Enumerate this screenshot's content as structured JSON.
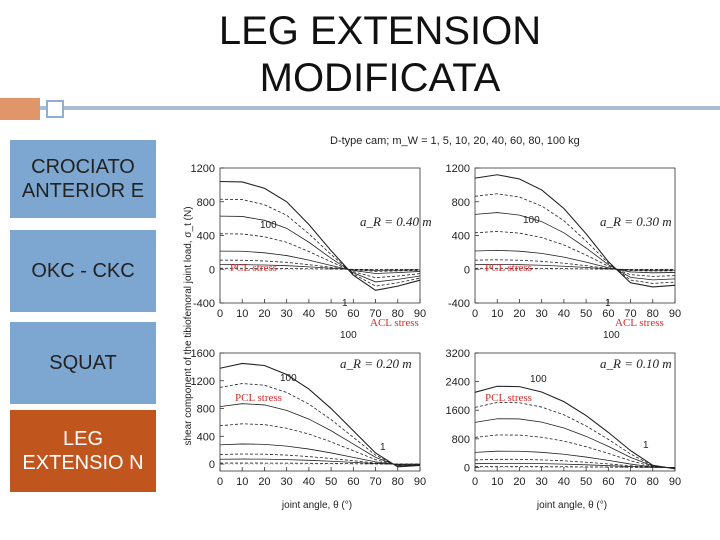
{
  "slide": {
    "title": "LEG EXTENSION MODIFICATA",
    "accent_colors": {
      "orange": "#c0561d",
      "blue": "#7da7d1",
      "line": "#a9bfd8"
    }
  },
  "sidebar": {
    "items": [
      {
        "label": "CROCIATO ANTERIOR E",
        "style": "blue"
      },
      {
        "label": "OKC - CKC",
        "style": "blue"
      },
      {
        "label": "SQUAT",
        "style": "blue"
      },
      {
        "label": "LEG EXTENSIO N",
        "style": "orange"
      }
    ]
  },
  "figure": {
    "header": "D-type cam;  m_W = 1, 5, 10, 20, 40, 60, 80, 100 kg",
    "y_label": "shear component of the tibiofemoral joint load, σ_t (N)",
    "x_label": "joint angle, θ (°)",
    "pcl_label": "PCL stress",
    "acl_label": "ACL stress",
    "max_label": "100",
    "min_label": "1"
  },
  "chart_data": [
    {
      "type": "line",
      "panel": "top-left",
      "title": "a_R = 0.40 m",
      "xlabel": "joint angle, θ (°)",
      "ylabel": "shear component of the tibiofemoral joint load, σ_t (N)",
      "x": [
        0,
        10,
        20,
        30,
        40,
        50,
        60,
        70,
        80,
        90
      ],
      "xlim": [
        0,
        90
      ],
      "ylim": [
        -400,
        1200
      ],
      "yticks": [
        -400,
        0,
        400,
        800,
        1200
      ],
      "xticks": [
        0,
        10,
        20,
        30,
        40,
        50,
        60,
        70,
        80,
        90
      ],
      "series": [
        {
          "name": "100 kg",
          "values": [
            1040,
            1035,
            960,
            800,
            530,
            220,
            -70,
            -250,
            -200,
            -130
          ]
        },
        {
          "name": "80 kg",
          "values": [
            830,
            826,
            765,
            640,
            420,
            175,
            -55,
            -200,
            -160,
            -105
          ]
        },
        {
          "name": "60 kg",
          "values": [
            630,
            626,
            580,
            485,
            320,
            130,
            -42,
            -150,
            -120,
            -80
          ]
        },
        {
          "name": "40 kg",
          "values": [
            420,
            418,
            385,
            320,
            210,
            88,
            -28,
            -100,
            -80,
            -52
          ]
        },
        {
          "name": "20 kg",
          "values": [
            215,
            213,
            195,
            162,
            108,
            45,
            -15,
            -50,
            -40,
            -26
          ]
        },
        {
          "name": "10 kg",
          "values": [
            108,
            107,
            98,
            82,
            54,
            23,
            -8,
            -25,
            -20,
            -13
          ]
        },
        {
          "name": "5 kg",
          "values": [
            55,
            54,
            50,
            42,
            28,
            12,
            -4,
            -13,
            -10,
            -7
          ]
        },
        {
          "name": "1 kg",
          "values": [
            11,
            11,
            10,
            8,
            6,
            2,
            -1,
            -3,
            -2,
            -1
          ]
        }
      ]
    },
    {
      "type": "line",
      "panel": "top-right",
      "title": "a_R = 0.30 m",
      "xlabel": "joint angle, θ (°)",
      "ylabel": "shear component of the tibiofemoral joint load, σ_t (N)",
      "x": [
        0,
        10,
        20,
        30,
        40,
        50,
        60,
        70,
        80,
        90
      ],
      "xlim": [
        0,
        90
      ],
      "ylim": [
        -400,
        1200
      ],
      "yticks": [
        -400,
        0,
        400,
        800,
        1200
      ],
      "xticks": [
        0,
        10,
        20,
        30,
        40,
        50,
        60,
        70,
        80,
        90
      ],
      "series": [
        {
          "name": "100 kg",
          "values": [
            1080,
            1120,
            1070,
            940,
            720,
            420,
            90,
            -160,
            -210,
            -190
          ]
        },
        {
          "name": "80 kg",
          "values": [
            865,
            895,
            855,
            750,
            575,
            335,
            72,
            -128,
            -168,
            -152
          ]
        },
        {
          "name": "60 kg",
          "values": [
            650,
            672,
            642,
            565,
            432,
            252,
            54,
            -96,
            -126,
            -114
          ]
        },
        {
          "name": "40 kg",
          "values": [
            432,
            448,
            428,
            376,
            288,
            168,
            36,
            -64,
            -84,
            -76
          ]
        },
        {
          "name": "20 kg",
          "values": [
            216,
            224,
            214,
            188,
            144,
            84,
            18,
            -32,
            -42,
            -38
          ]
        },
        {
          "name": "10 kg",
          "values": [
            108,
            112,
            107,
            94,
            72,
            42,
            9,
            -16,
            -21,
            -19
          ]
        },
        {
          "name": "5 kg",
          "values": [
            54,
            56,
            54,
            47,
            36,
            21,
            5,
            -8,
            -11,
            -10
          ]
        },
        {
          "name": "1 kg",
          "values": [
            11,
            11,
            11,
            9,
            7,
            4,
            1,
            -2,
            -2,
            -2
          ]
        }
      ]
    },
    {
      "type": "line",
      "panel": "bottom-left",
      "title": "a_R = 0.20 m",
      "xlabel": "joint angle, θ (°)",
      "ylabel": "shear component of the tibiofemoral joint load, σ_t (N)",
      "x": [
        0,
        10,
        20,
        30,
        40,
        50,
        60,
        70,
        80,
        90
      ],
      "xlim": [
        0,
        90
      ],
      "ylim": [
        -100,
        1600
      ],
      "yticks": [
        0,
        400,
        800,
        1200,
        1600
      ],
      "xticks": [
        0,
        10,
        20,
        30,
        40,
        50,
        60,
        70,
        80,
        90
      ],
      "series": [
        {
          "name": "100 kg",
          "values": [
            1380,
            1450,
            1420,
            1290,
            1080,
            800,
            480,
            160,
            -40,
            -20
          ]
        },
        {
          "name": "80 kg",
          "values": [
            1105,
            1160,
            1136,
            1032,
            864,
            640,
            384,
            128,
            -32,
            -16
          ]
        },
        {
          "name": "60 kg",
          "values": [
            828,
            870,
            852,
            774,
            648,
            480,
            288,
            96,
            -24,
            -12
          ]
        },
        {
          "name": "40 kg",
          "values": [
            552,
            580,
            568,
            516,
            432,
            320,
            192,
            64,
            -16,
            -8
          ]
        },
        {
          "name": "20 kg",
          "values": [
            276,
            290,
            284,
            258,
            216,
            160,
            96,
            32,
            -8,
            -4
          ]
        },
        {
          "name": "10 kg",
          "values": [
            138,
            145,
            142,
            129,
            108,
            80,
            48,
            16,
            -4,
            -2
          ]
        },
        {
          "name": "5 kg",
          "values": [
            69,
            72,
            71,
            64,
            54,
            40,
            24,
            8,
            -2,
            -1
          ]
        },
        {
          "name": "1 kg",
          "values": [
            14,
            14,
            14,
            13,
            11,
            8,
            5,
            2,
            0,
            0
          ]
        }
      ]
    },
    {
      "type": "line",
      "panel": "bottom-right",
      "title": "a_R = 0.10 m",
      "xlabel": "joint angle, θ (°)",
      "ylabel": "shear component of the tibiofemoral joint load, σ_t (N)",
      "x": [
        0,
        10,
        20,
        30,
        40,
        50,
        60,
        70,
        80,
        90
      ],
      "xlim": [
        0,
        90
      ],
      "ylim": [
        -100,
        3200
      ],
      "yticks": [
        0,
        800,
        1600,
        2400,
        3200
      ],
      "xticks": [
        0,
        10,
        20,
        30,
        40,
        50,
        60,
        70,
        80,
        90
      ],
      "series": [
        {
          "name": "100 kg",
          "values": [
            2100,
            2270,
            2260,
            2110,
            1840,
            1450,
            980,
            470,
            60,
            -40
          ]
        },
        {
          "name": "80 kg",
          "values": [
            1680,
            1816,
            1808,
            1688,
            1472,
            1160,
            784,
            376,
            48,
            -32
          ]
        },
        {
          "name": "60 kg",
          "values": [
            1260,
            1362,
            1356,
            1266,
            1104,
            870,
            588,
            282,
            36,
            -24
          ]
        },
        {
          "name": "40 kg",
          "values": [
            840,
            908,
            904,
            844,
            736,
            580,
            392,
            188,
            24,
            -16
          ]
        },
        {
          "name": "20 kg",
          "values": [
            420,
            454,
            452,
            422,
            368,
            290,
            196,
            94,
            12,
            -8
          ]
        },
        {
          "name": "10 kg",
          "values": [
            210,
            227,
            226,
            211,
            184,
            145,
            98,
            47,
            6,
            -4
          ]
        },
        {
          "name": "5 kg",
          "values": [
            105,
            114,
            113,
            106,
            92,
            73,
            49,
            24,
            3,
            -2
          ]
        },
        {
          "name": "1 kg",
          "values": [
            21,
            23,
            23,
            21,
            18,
            15,
            10,
            5,
            1,
            0
          ]
        }
      ]
    }
  ]
}
